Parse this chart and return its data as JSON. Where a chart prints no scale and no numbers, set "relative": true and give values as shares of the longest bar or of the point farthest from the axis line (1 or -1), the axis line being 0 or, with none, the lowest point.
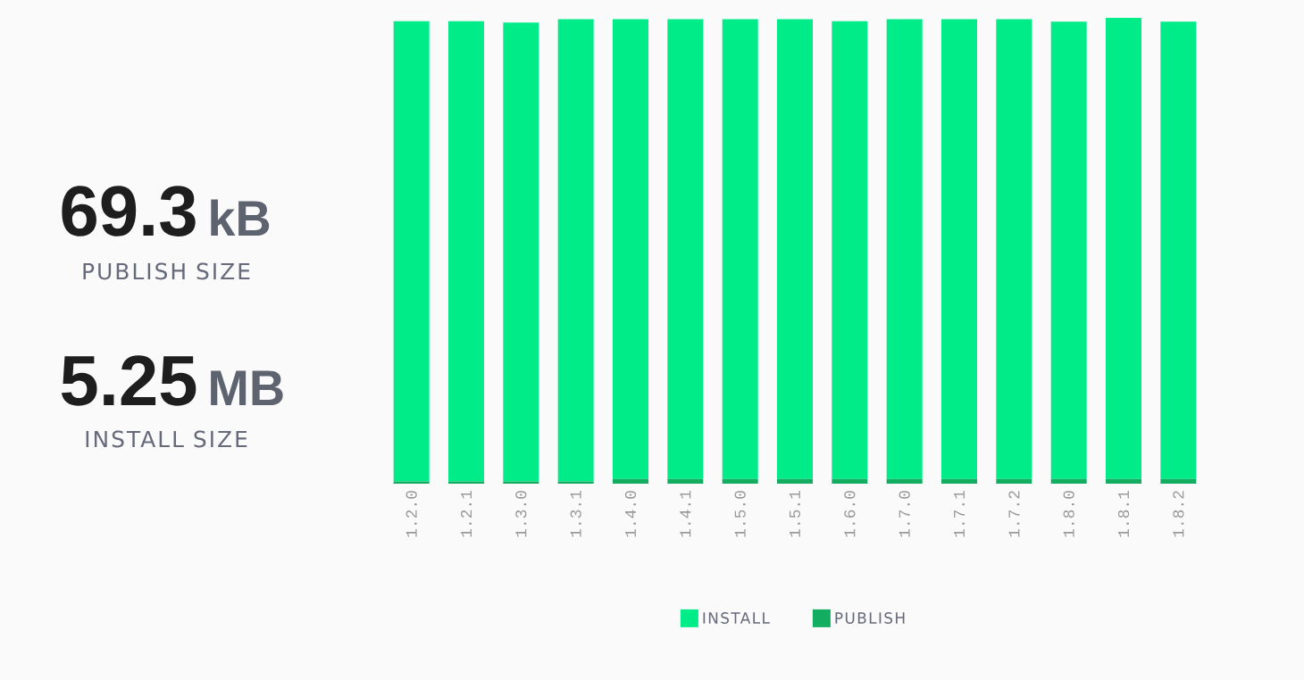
{
  "chart_data": [
    {
      "type": "other",
      "annotations": [
        "69.3",
        "kB",
        "PUBLISH SIZE",
        "5.25",
        "MB",
        "INSTALL SIZE"
      ]
    },
    {
      "type": "bar",
      "relative": true,
      "stacked": true,
      "legend": "bottom",
      "categories": [
        "1.2.0",
        "1.2.1",
        "1.3.0",
        "1.3.1",
        "1.4.0",
        "1.4.1",
        "1.5.0",
        "1.5.1",
        "1.6.0",
        "1.7.0",
        "1.7.1",
        "1.7.2",
        "1.8.0",
        "1.8.1",
        "1.8.2"
      ],
      "series": [
        {
          "name": "PUBLISH",
          "color": "#12ad60",
          "values": [
            0.005,
            0.005,
            0.005,
            0.005,
            0.01,
            0.01,
            0.01,
            0.01,
            0.01,
            0.01,
            0.01,
            0.01,
            0.01,
            0.01,
            0.01
          ]
        },
        {
          "name": "INSTALL",
          "color": "#00ec88",
          "values": [
            0.988,
            0.988,
            0.985,
            0.992,
            0.987,
            0.987,
            0.987,
            0.987,
            0.983,
            0.987,
            0.987,
            0.987,
            0.982,
            0.99,
            0.982
          ]
        }
      ]
    }
  ]
}
